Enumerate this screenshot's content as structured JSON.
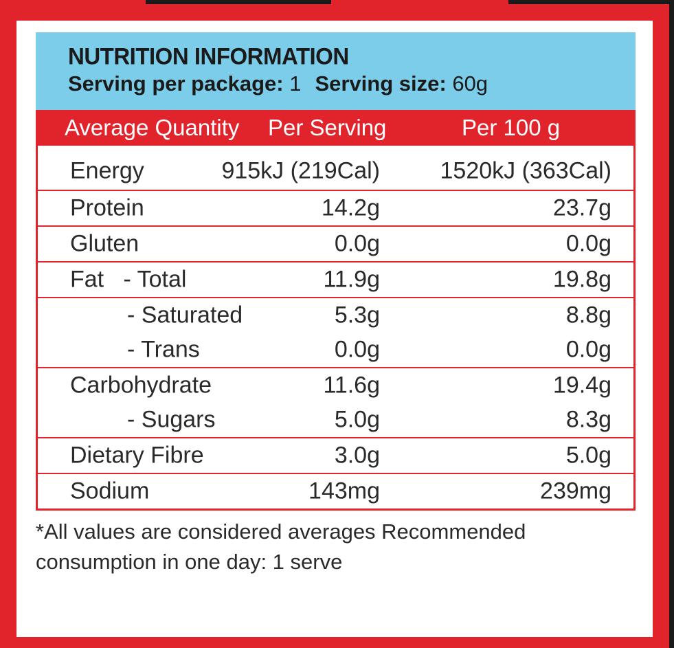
{
  "title": "NUTRITION INFORMATION",
  "serving": {
    "per_package_label": "Serving per package:",
    "per_package_value": "1",
    "size_label": "Serving size:",
    "size_value": "60g"
  },
  "columns": {
    "quantity": "Average Quantity",
    "per_serving": "Per Serving",
    "per_100g": "Per 100 g"
  },
  "groups": [
    {
      "rows": [
        {
          "name": "Energy",
          "serving": "915kJ (219Cal)",
          "per100": "1520kJ (363Cal)"
        }
      ]
    },
    {
      "rows": [
        {
          "name": "Protein",
          "serving": "14.2g",
          "per100": "23.7g"
        }
      ]
    },
    {
      "rows": [
        {
          "name": "Gluten",
          "serving": "0.0g",
          "per100": "0.0g"
        }
      ]
    },
    {
      "rows": [
        {
          "name": "Fat   - Total",
          "serving": "11.9g",
          "per100": "19.8g"
        }
      ]
    },
    {
      "rows": [
        {
          "name": "- Saturated",
          "serving": "5.3g",
          "per100": "8.8g",
          "indent": true
        },
        {
          "name": "- Trans",
          "serving": "0.0g",
          "per100": "0.0g",
          "indent": true
        }
      ]
    },
    {
      "rows": [
        {
          "name": "Carbohydrate",
          "serving": "11.6g",
          "per100": "19.4g"
        },
        {
          "name": "- Sugars",
          "serving": "5.0g",
          "per100": "8.3g",
          "indent": true
        }
      ]
    },
    {
      "rows": [
        {
          "name": "Dietary Fibre",
          "serving": "3.0g",
          "per100": "5.0g"
        }
      ]
    },
    {
      "rows": [
        {
          "name": "Sodium",
          "serving": "143mg",
          "per100": "239mg"
        }
      ]
    }
  ],
  "footnote": "*All values are considered averages Recommended consumption in one day: 1 serve",
  "colors": {
    "red": "#e1242c",
    "blue": "#7ccdea"
  }
}
